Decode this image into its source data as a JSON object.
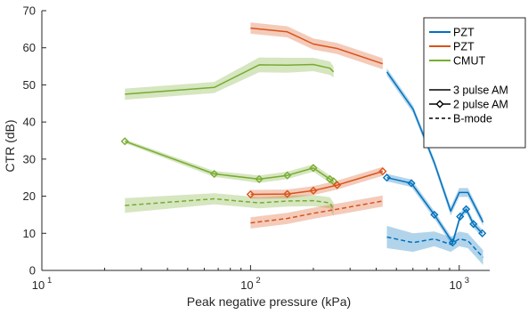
{
  "chart_data": {
    "type": "line",
    "title": "",
    "xlabel": "Peak negative pressure (kPa)",
    "ylabel": "CTR (dB)",
    "x_scale": "log",
    "xlim": [
      10,
      1400
    ],
    "ylim": [
      0,
      70
    ],
    "x_ticks": [
      10,
      100,
      1000
    ],
    "x_tick_labels": [
      {
        "base": "10",
        "exp": "1"
      },
      {
        "base": "10",
        "exp": "2"
      },
      {
        "base": "10",
        "exp": "3"
      }
    ],
    "y_ticks": [
      0,
      10,
      20,
      30,
      40,
      50,
      60,
      70
    ],
    "grid": false,
    "legend_position": "top-right",
    "legend": {
      "transducers": [
        {
          "label": "PZT",
          "color": "#0072BD"
        },
        {
          "label": "PZT",
          "color": "#D95319"
        },
        {
          "label": "CMUT",
          "color": "#77AC30"
        }
      ],
      "modes": [
        {
          "label": "3 pulse AM",
          "style": "solid"
        },
        {
          "label": "2 pulse AM",
          "style": "diamond"
        },
        {
          "label": "B-mode",
          "style": "dashed"
        }
      ]
    },
    "series": [
      {
        "transducer": "CMUT",
        "mode": "3 pulse AM",
        "color": "#77AC30",
        "x": [
          25,
          67,
          110,
          150,
          200,
          240,
          250
        ],
        "y": [
          47.5,
          49.3,
          55.4,
          55.3,
          55.5,
          54.5,
          53.5
        ],
        "band": [
          1.5,
          1.5,
          2.0,
          2.0,
          1.8,
          1.8,
          1.5
        ]
      },
      {
        "transducer": "CMUT",
        "mode": "2 pulse AM",
        "color": "#77AC30",
        "x": [
          25,
          67,
          110,
          150,
          200,
          240,
          250
        ],
        "y": [
          34.8,
          26.0,
          24.6,
          25.6,
          27.6,
          24.6,
          24.0
        ],
        "band": [
          0.5,
          0.8,
          1.0,
          1.0,
          1.0,
          1.0,
          1.0
        ]
      },
      {
        "transducer": "CMUT",
        "mode": "B-mode",
        "color": "#77AC30",
        "x": [
          25,
          67,
          110,
          150,
          200,
          240,
          250
        ],
        "y": [
          17.5,
          19.3,
          18.2,
          18.7,
          18.8,
          18.2,
          16.5
        ],
        "band": [
          2.0,
          1.5,
          1.5,
          1.5,
          1.5,
          1.5,
          1.8
        ]
      },
      {
        "transducer": "PZT",
        "mode": "3 pulse AM",
        "color": "#D95319",
        "x": [
          100,
          150,
          200,
          260,
          430
        ],
        "y": [
          65.3,
          64.3,
          61.0,
          59.8,
          55.7
        ],
        "band": [
          1.5,
          1.5,
          1.5,
          1.5,
          1.5
        ]
      },
      {
        "transducer": "PZT",
        "mode": "2 pulse AM",
        "color": "#D95319",
        "x": [
          100,
          150,
          200,
          260,
          430
        ],
        "y": [
          20.5,
          20.6,
          21.5,
          23.0,
          26.7
        ],
        "band": [
          1.2,
          1.2,
          1.2,
          1.2,
          1.2
        ]
      },
      {
        "transducer": "PZT",
        "mode": "B-mode",
        "color": "#D95319",
        "x": [
          100,
          150,
          200,
          260,
          430
        ],
        "y": [
          12.8,
          14.0,
          15.4,
          16.5,
          18.7
        ],
        "band": [
          1.5,
          1.5,
          1.5,
          1.5,
          1.5
        ]
      },
      {
        "transducer": "PZT",
        "mode": "3 pulse AM",
        "color": "#0072BD",
        "x": [
          450,
          600,
          760,
          910,
          1000,
          1100,
          1300
        ],
        "y": [
          53.5,
          43.5,
          29.0,
          16.0,
          21.0,
          21.0,
          13.0
        ],
        "band": [
          1.0,
          1.0,
          1.0,
          1.2,
          1.2,
          1.2,
          1.0
        ]
      },
      {
        "transducer": "PZT",
        "mode": "2 pulse AM",
        "color": "#0072BD",
        "x": [
          450,
          590,
          760,
          930,
          1010,
          1080,
          1170,
          1290
        ],
        "y": [
          25.0,
          23.5,
          15.0,
          7.5,
          14.5,
          16.5,
          12.5,
          10.0
        ],
        "band": [
          1.0,
          1.0,
          1.0,
          1.0,
          1.0,
          1.0,
          1.0,
          1.0
        ]
      },
      {
        "transducer": "PZT",
        "mode": "B-mode",
        "color": "#0072BD",
        "x": [
          450,
          600,
          760,
          910,
          1000,
          1100,
          1300
        ],
        "y": [
          9.0,
          7.5,
          8.5,
          7.0,
          8.5,
          8.0,
          3.5
        ],
        "band": [
          3.0,
          2.5,
          2.0,
          2.0,
          2.0,
          2.0,
          2.0
        ]
      }
    ]
  }
}
